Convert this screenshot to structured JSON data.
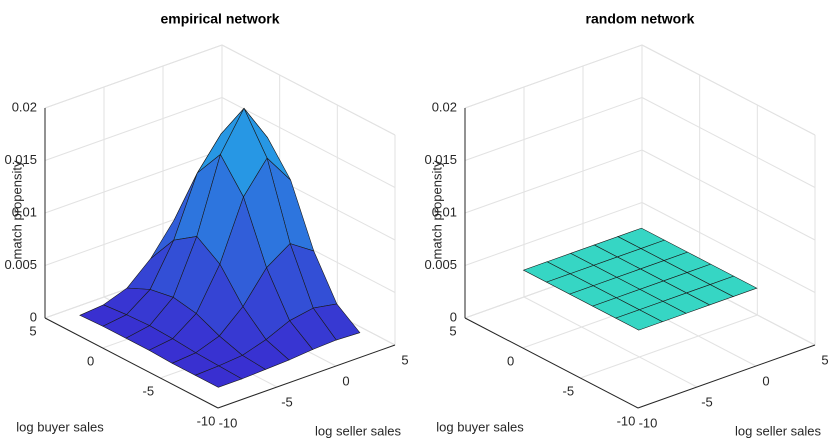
{
  "chart_data": [
    {
      "type": "surface",
      "title": "empirical network",
      "xlabel": "log seller sales",
      "ylabel": "log buyer sales",
      "zlabel": "match propensity",
      "xlim": [
        -10,
        5
      ],
      "ylim": [
        -10,
        5
      ],
      "zlim": [
        0,
        0.02
      ],
      "xticks": [
        -10,
        -5,
        0,
        5
      ],
      "yticks": [
        -10,
        -5,
        0,
        5
      ],
      "zticks": [
        0,
        0.005,
        0.01,
        0.015,
        0.02
      ],
      "colormap": [
        "#3a28cf",
        "#22b6ea"
      ],
      "grid": true,
      "x": [
        -9,
        -7,
        -5,
        -3,
        -1,
        1,
        3
      ],
      "y": [
        -9,
        -7,
        -5,
        -3,
        -1,
        1,
        3
      ],
      "z": [
        [
          0.001,
          0.001,
          0.0011,
          0.0012,
          0.0014,
          0.0015,
          0.0014
        ],
        [
          0.001,
          0.0011,
          0.0013,
          0.002,
          0.003,
          0.0034,
          0.003
        ],
        [
          0.001,
          0.0012,
          0.002,
          0.004,
          0.0069,
          0.0084,
          0.0069
        ],
        [
          0.0011,
          0.0014,
          0.003,
          0.0069,
          0.0125,
          0.0154,
          0.0125
        ],
        [
          0.0011,
          0.0015,
          0.0034,
          0.0084,
          0.0154,
          0.019,
          0.0154
        ],
        [
          0.0011,
          0.0014,
          0.003,
          0.0069,
          0.0125,
          0.0154,
          0.0125
        ],
        [
          0.001,
          0.0012,
          0.002,
          0.004,
          0.0069,
          0.0084,
          0.0069
        ]
      ]
    },
    {
      "type": "surface",
      "title": "random network",
      "xlabel": "log seller sales",
      "ylabel": "log buyer sales",
      "zlabel": "match propensity",
      "xlim": [
        -10,
        5
      ],
      "ylim": [
        -10,
        5
      ],
      "zlim": [
        0,
        0.02
      ],
      "xticks": [
        -10,
        -5,
        0,
        5
      ],
      "yticks": [
        -10,
        -5,
        0,
        5
      ],
      "zticks": [
        0,
        0.005,
        0.01,
        0.015,
        0.02
      ],
      "color": "#36d6c4",
      "grid": true,
      "x": [
        -7,
        -5,
        -3,
        -1,
        1,
        3
      ],
      "y": [
        -7,
        -5,
        -3,
        -1,
        1,
        3
      ],
      "z": [
        [
          0.0045,
          0.0045,
          0.0045,
          0.0045,
          0.0045,
          0.0045
        ],
        [
          0.0045,
          0.0045,
          0.0045,
          0.0045,
          0.0045,
          0.0045
        ],
        [
          0.0045,
          0.0045,
          0.0045,
          0.0045,
          0.0045,
          0.0045
        ],
        [
          0.0045,
          0.0045,
          0.0045,
          0.0045,
          0.0045,
          0.0045
        ],
        [
          0.0045,
          0.0045,
          0.0045,
          0.0045,
          0.0045,
          0.0045
        ],
        [
          0.0045,
          0.0045,
          0.0045,
          0.0045,
          0.0045,
          0.0045
        ]
      ]
    }
  ]
}
